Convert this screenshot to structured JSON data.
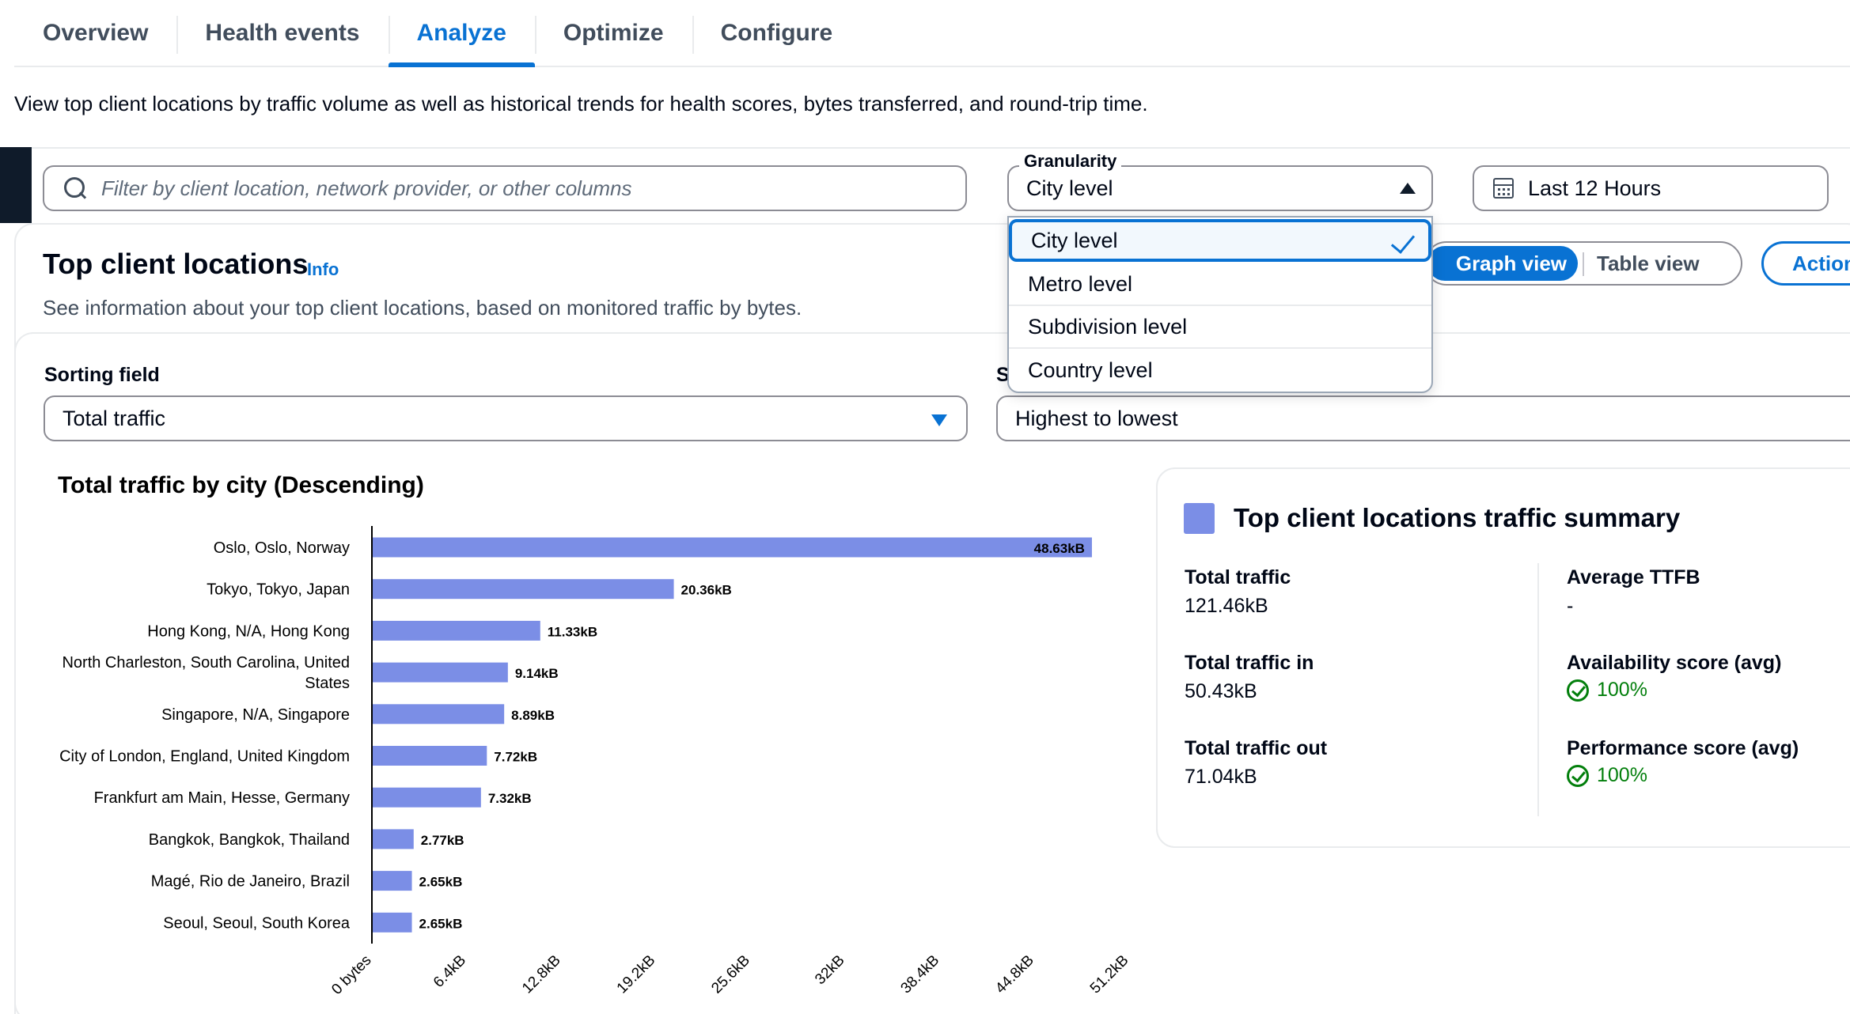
{
  "tabs": [
    {
      "label": "Overview",
      "active": false
    },
    {
      "label": "Health events",
      "active": false
    },
    {
      "label": "Analyze",
      "active": true
    },
    {
      "label": "Optimize",
      "active": false
    },
    {
      "label": "Configure",
      "active": false
    }
  ],
  "description": "View top client locations by traffic volume as well as historical trends for health scores, bytes transferred, and round-trip time.",
  "filter": {
    "placeholder": "Filter by client location, network provider, or other columns",
    "icon": "search-icon"
  },
  "granularity": {
    "label": "Granularity",
    "value": "City level",
    "options": [
      "City level",
      "Metro level",
      "Subdivision level",
      "Country level"
    ],
    "selected_index": 0
  },
  "time_range": {
    "label": "Last 12 Hours",
    "icon": "calendar-icon"
  },
  "section": {
    "title": "Top client locations",
    "info": "Info",
    "description": "See information about your top client locations, based on monitored traffic by bytes."
  },
  "view_toggle": {
    "graph": "Graph view",
    "table": "Table view",
    "active": "graph"
  },
  "actions_label": "Action",
  "sorting": {
    "field_label": "Sorting field",
    "field_value": "Total traffic",
    "order_label": "S",
    "order_value": "Highest to lowest"
  },
  "chart_data": {
    "type": "bar",
    "orientation": "horizontal",
    "title": "Total traffic by city (Descending)",
    "categories": [
      "Oslo, Oslo, Norway",
      "Tokyo, Tokyo, Japan",
      "Hong Kong, N/A, Hong Kong",
      "North Charleston, South Carolina, United States",
      "Singapore, N/A, Singapore",
      "City of London, England, United Kingdom",
      "Frankfurt am Main, Hesse, Germany",
      "Bangkok, Bangkok, Thailand",
      "Magé, Rio de Janeiro, Brazil",
      "Seoul, Seoul, South Korea"
    ],
    "values": [
      48.63,
      20.36,
      11.33,
      9.14,
      8.89,
      7.72,
      7.32,
      2.77,
      2.65,
      2.65
    ],
    "value_labels": [
      "48.63kB",
      "20.36kB",
      "11.33kB",
      "9.14kB",
      "8.89kB",
      "7.72kB",
      "7.32kB",
      "2.77kB",
      "2.65kB",
      "2.65kB"
    ],
    "unit": "kB",
    "xlim": [
      0,
      51.2
    ],
    "x_ticks": [
      0,
      6.4,
      12.8,
      19.2,
      25.6,
      32,
      38.4,
      44.8,
      51.2
    ],
    "x_tick_labels": [
      "0 bytes",
      "6.4kB",
      "12.8kB",
      "19.2kB",
      "25.6kB",
      "32kB",
      "38.4kB",
      "44.8kB",
      "51.2kB"
    ],
    "bar_color": "#7b8ee6",
    "grid": false
  },
  "summary": {
    "title": "Top client locations traffic summary",
    "color": "#7b8ee6",
    "total_traffic_label": "Total traffic",
    "total_traffic": "121.46kB",
    "traffic_in_label": "Total traffic in",
    "traffic_in": "50.43kB",
    "traffic_out_label": "Total traffic out",
    "traffic_out": "71.04kB",
    "ttfb_label": "Average TTFB",
    "ttfb": "-",
    "availability_label": "Availability score (avg)",
    "availability": "100%",
    "performance_label": "Performance score (avg)",
    "performance": "100%"
  }
}
